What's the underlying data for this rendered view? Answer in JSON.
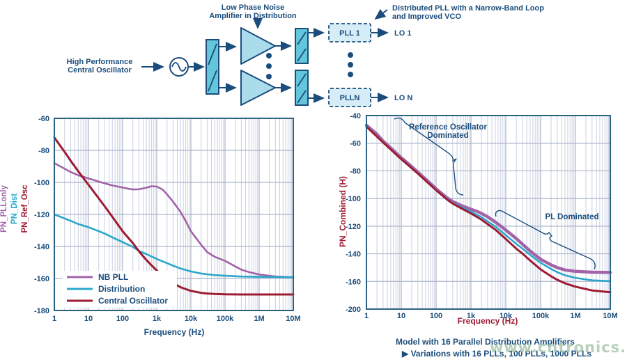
{
  "colors": {
    "navy_text": "#1a4d7c",
    "accent_red": "#9e1b32",
    "purple": "#a263a8",
    "cyan": "#2aa7cb",
    "dark_red": "#9e1b32",
    "frame": "#2a6284",
    "grid_minor": "#c9d0e0",
    "grid_major": "#a9b3ca",
    "block_fill": "#63c6da",
    "amp_fill": "#abdcec",
    "pll_fill": "#d6edf7",
    "watermark": "#abc8af"
  },
  "diagram": {
    "osc_label_line1": "High Performance",
    "osc_label_line2": "Central Oscillator",
    "amp_label_line1": "Low Phase Noise",
    "amp_label_line2": "Amplifier in Distribution",
    "dpll_label_line1": "Distributed PLL with a Narrow-Band Loop",
    "dpll_label_line2": "and Improved VCO",
    "pll1_label": "PLL 1",
    "plln_label": "PLLN",
    "lo1_label": "LO 1",
    "lon_label": "LO N"
  },
  "chart_data": [
    {
      "type": "line",
      "xlabel": "Frequency (Hz)",
      "ylabels": [
        "PN_PLLonly",
        "PN_Dist",
        "PN_Ref_Osc"
      ],
      "x_ticks": [
        "1",
        "10",
        "100",
        "1k",
        "10k",
        "100k",
        "1M",
        "10M"
      ],
      "y_ticks": [
        "-60",
        "-80",
        "-100",
        "-120",
        "-140",
        "-160",
        "-180"
      ],
      "xlim_hz": [
        1,
        10000000
      ],
      "ylim_db": [
        -180,
        -60
      ],
      "grid": true,
      "legend_position": "bottom-left",
      "series": [
        {
          "name": "NB PLL",
          "color": "#a263a8",
          "width": 2.6,
          "points": [
            [
              1,
              -88
            ],
            [
              2,
              -91.5
            ],
            [
              3,
              -93.5
            ],
            [
              5,
              -95.5
            ],
            [
              7,
              -96.5
            ],
            [
              10,
              -97.5
            ],
            [
              20,
              -99.5
            ],
            [
              30,
              -100.6
            ],
            [
              50,
              -101.9
            ],
            [
              100,
              -103.2
            ],
            [
              150,
              -104
            ],
            [
              200,
              -104.4
            ],
            [
              300,
              -104.3
            ],
            [
              500,
              -103.3
            ],
            [
              700,
              -102.4
            ],
            [
              1000,
              -102.6
            ],
            [
              1500,
              -104.5
            ],
            [
              2000,
              -107.5
            ],
            [
              3000,
              -112
            ],
            [
              5000,
              -118.5
            ],
            [
              7000,
              -124
            ],
            [
              10000,
              -130.5
            ],
            [
              20000,
              -139
            ],
            [
              30000,
              -143.5
            ],
            [
              50000,
              -146.5
            ],
            [
              100000,
              -149
            ],
            [
              200000,
              -152.5
            ],
            [
              300000,
              -154.5
            ],
            [
              500000,
              -156
            ],
            [
              1000000,
              -157.5
            ],
            [
              3000000,
              -158.8
            ],
            [
              10000000,
              -159.3
            ]
          ]
        },
        {
          "name": "Distribution",
          "color": "#2aa7cb",
          "width": 2.6,
          "points": [
            [
              1,
              -120
            ],
            [
              2,
              -122.5
            ],
            [
              3,
              -124
            ],
            [
              5,
              -126
            ],
            [
              10,
              -128
            ],
            [
              20,
              -130.5
            ],
            [
              30,
              -132
            ],
            [
              50,
              -134.3
            ],
            [
              100,
              -137.3
            ],
            [
              200,
              -140.3
            ],
            [
              300,
              -142.8
            ],
            [
              500,
              -144.8
            ],
            [
              1000,
              -147.8
            ],
            [
              2000,
              -150.5
            ],
            [
              3000,
              -152
            ],
            [
              5000,
              -153.8
            ],
            [
              10000,
              -155.6
            ],
            [
              20000,
              -156.9
            ],
            [
              30000,
              -157.4
            ],
            [
              50000,
              -157.9
            ],
            [
              100000,
              -158.3
            ],
            [
              300000,
              -158.8
            ],
            [
              1000000,
              -159
            ],
            [
              3000000,
              -159.1
            ],
            [
              10000000,
              -159.2
            ]
          ]
        },
        {
          "name": "Central Oscillator",
          "color": "#9e1b32",
          "width": 3,
          "points": [
            [
              1,
              -72
            ],
            [
              2,
              -81
            ],
            [
              3,
              -86.5
            ],
            [
              5,
              -93
            ],
            [
              10,
              -101.5
            ],
            [
              20,
              -110
            ],
            [
              30,
              -115
            ],
            [
              50,
              -121.5
            ],
            [
              100,
              -130.5
            ],
            [
              200,
              -138
            ],
            [
              300,
              -143
            ],
            [
              500,
              -148.5
            ],
            [
              700,
              -151.8
            ],
            [
              1000,
              -155
            ],
            [
              2000,
              -160.5
            ],
            [
              3000,
              -163
            ],
            [
              5000,
              -165.5
            ],
            [
              10000,
              -167.8
            ],
            [
              20000,
              -169
            ],
            [
              30000,
              -169.4
            ],
            [
              50000,
              -169.7
            ],
            [
              100000,
              -169.9
            ],
            [
              300000,
              -170
            ],
            [
              1000000,
              -170
            ],
            [
              10000000,
              -170
            ]
          ]
        }
      ]
    },
    {
      "type": "line",
      "xlabel": "Frequency (Hz)",
      "ylabel": "PN_Combined (H)",
      "x_ticks": [
        "1",
        "10",
        "100",
        "1k",
        "10k",
        "100k",
        "1M",
        "10M"
      ],
      "y_ticks": [
        "-40",
        "-60",
        "-80",
        "-100",
        "-120",
        "-140",
        "-160",
        "-200"
      ],
      "xlim_hz": [
        1,
        10000000
      ],
      "ylim_db": [
        -180,
        -40
      ],
      "grid": true,
      "annotations": {
        "ref_line1": "Reference Oscillator",
        "ref_line2": "Dominated",
        "pl": "PL Dominated"
      },
      "series": [
        {
          "name": "",
          "color": "#a263a8",
          "width": 4.5,
          "points": [
            [
              1,
              -47
            ],
            [
              2,
              -53.5
            ],
            [
              3,
              -58.5
            ],
            [
              5,
              -63.5
            ],
            [
              10,
              -70.5
            ],
            [
              20,
              -77
            ],
            [
              30,
              -81
            ],
            [
              50,
              -86
            ],
            [
              100,
              -93
            ],
            [
              200,
              -99.3
            ],
            [
              300,
              -102.2
            ],
            [
              500,
              -104.8
            ],
            [
              700,
              -106.3
            ],
            [
              1000,
              -107.8
            ],
            [
              1500,
              -109.3
            ],
            [
              2000,
              -110.8
            ],
            [
              3000,
              -113.2
            ],
            [
              5000,
              -117
            ],
            [
              7000,
              -119.8
            ],
            [
              10000,
              -122.8
            ],
            [
              20000,
              -129
            ],
            [
              30000,
              -133
            ],
            [
              50000,
              -138
            ],
            [
              100000,
              -144
            ],
            [
              200000,
              -148
            ],
            [
              300000,
              -150
            ],
            [
              500000,
              -151.7
            ],
            [
              1000000,
              -152.7
            ],
            [
              3000000,
              -153.3
            ],
            [
              10000000,
              -153.5
            ]
          ]
        },
        {
          "name": "",
          "color": "#2aa7cb",
          "width": 2.6,
          "points": [
            [
              1,
              -47.8
            ],
            [
              3,
              -59.3
            ],
            [
              10,
              -71.3
            ],
            [
              30,
              -81.8
            ],
            [
              100,
              -93.8
            ],
            [
              200,
              -100.2
            ],
            [
              300,
              -103.2
            ],
            [
              500,
              -106
            ],
            [
              1000,
              -109.5
            ],
            [
              2000,
              -113.5
            ],
            [
              3000,
              -116.5
            ],
            [
              5000,
              -120.2
            ],
            [
              10000,
              -126.5
            ],
            [
              20000,
              -132.8
            ],
            [
              30000,
              -136.2
            ],
            [
              50000,
              -140.7
            ],
            [
              100000,
              -146.5
            ],
            [
              200000,
              -151
            ],
            [
              300000,
              -153.3
            ],
            [
              500000,
              -155.5
            ],
            [
              1000000,
              -157.4
            ],
            [
              3000000,
              -159.2
            ],
            [
              10000000,
              -159.8
            ]
          ]
        },
        {
          "name": "",
          "color": "#9e1b32",
          "width": 3,
          "points": [
            [
              1,
              -48
            ],
            [
              3,
              -59.5
            ],
            [
              10,
              -71.5
            ],
            [
              30,
              -82
            ],
            [
              100,
              -94
            ],
            [
              200,
              -100.5
            ],
            [
              300,
              -103.7
            ],
            [
              500,
              -106.8
            ],
            [
              1000,
              -110.8
            ],
            [
              2000,
              -115.3
            ],
            [
              3000,
              -118.5
            ],
            [
              5000,
              -122.5
            ],
            [
              10000,
              -129.3
            ],
            [
              20000,
              -136.3
            ],
            [
              30000,
              -139.8
            ],
            [
              50000,
              -144.8
            ],
            [
              100000,
              -151.3
            ],
            [
              200000,
              -156.3
            ],
            [
              300000,
              -158.8
            ],
            [
              500000,
              -161.3
            ],
            [
              1000000,
              -163.8
            ],
            [
              3000000,
              -166.5
            ],
            [
              10000000,
              -167.8
            ]
          ]
        }
      ]
    }
  ],
  "captions": {
    "model": "Model with 16 Parallel Distribution Amplifiers",
    "variations": "▶ Variations with 16 PLLs, 100 PLLs, 1000 PLLs"
  },
  "watermark": "www.cntronics.com"
}
